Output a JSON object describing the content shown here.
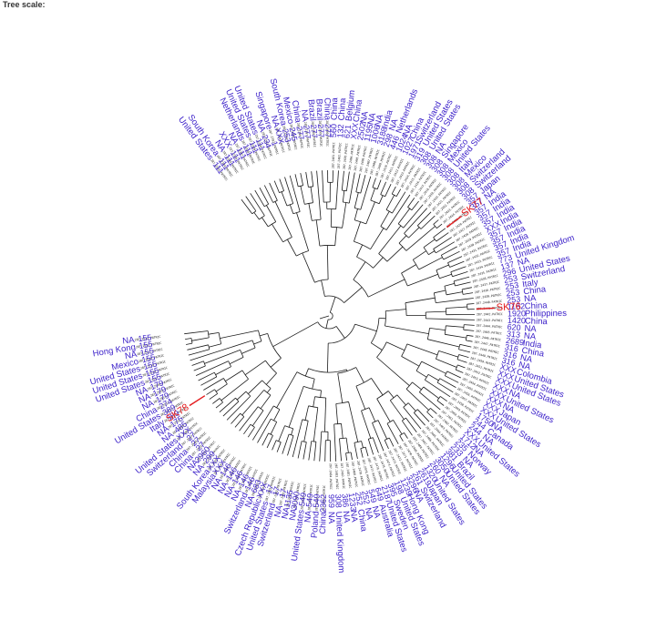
{
  "header": {
    "title": "Tree scale:"
  },
  "colors": {
    "label": "#3a1fc9",
    "branch": "#1a1a1a",
    "highlight": "#e41a1c",
    "id_text": "#111111"
  },
  "tips": [
    {
      "id": "287.2383.PATRIC",
      "st": "111",
      "country": "United States"
    },
    {
      "id": "287.2384.PATRIC",
      "st": "111",
      "country": "South Korea"
    },
    {
      "id": "287.2385.PATRIC",
      "st": "111",
      "country": "NA"
    },
    {
      "id": "287.2386.PATRIC",
      "st": "111",
      "country": "XXX"
    },
    {
      "id": "287.2387.PATRIC",
      "st": "111",
      "country": "NA"
    },
    {
      "id": "287.2388.PATRIC",
      "st": "111",
      "country": "Netherlands"
    },
    {
      "id": "287.2389.PATRIC",
      "st": "111",
      "country": "United States"
    },
    {
      "id": "287.2390.PATRIC",
      "st": "111",
      "country": "United States"
    },
    {
      "id": "287.2391.PATRIC",
      "st": "234",
      "country": "NA"
    },
    {
      "id": "287.2392.PATRIC",
      "st": "1",
      "country": "Singapore"
    },
    {
      "id": "287.2393.PATRIC",
      "st": "XXX",
      "country": "NA"
    },
    {
      "id": "287.2394.PATRIC",
      "st": "253",
      "country": "South Korea"
    },
    {
      "id": "287.2395.PATRIC",
      "st": "245",
      "country": "Mexico"
    },
    {
      "id": "287.2396.PATRIC",
      "st": "277",
      "country": "China"
    },
    {
      "id": "287.2397.PATRIC",
      "st": "277",
      "country": "NA"
    },
    {
      "id": "287.2398.PATRIC",
      "st": "277",
      "country": "Brazil"
    },
    {
      "id": "287.2399.PATRIC",
      "st": "277",
      "country": "Brazil"
    },
    {
      "id": "287.2400.PATRIC",
      "st": "277",
      "country": "China"
    },
    {
      "id": "287.2401.PATRIC",
      "st": "560",
      "country": "China"
    },
    {
      "id": "287.2402.PATRIC",
      "st": "132",
      "country": "China"
    },
    {
      "id": "287.2403.PATRIC",
      "st": "621",
      "country": "Belgium"
    },
    {
      "id": "287.2404.PATRIC",
      "st": "XXX",
      "country": "China"
    },
    {
      "id": "287.2405.PATRIC",
      "st": "2502",
      "country": "NA"
    },
    {
      "id": "287.2406.PATRIC",
      "st": "1195",
      "country": "NA"
    },
    {
      "id": "287.2407.PATRIC",
      "st": "1006",
      "country": "NA"
    },
    {
      "id": "287.2408.PATRIC",
      "st": "3188",
      "country": "India"
    },
    {
      "id": "287.2409.PATRIC",
      "st": "298",
      "country": "NA"
    },
    {
      "id": "287.2410.PATRIC",
      "st": "446",
      "country": "Netherlands"
    },
    {
      "id": "287.2411.PATRIC",
      "st": "1024",
      "country": "NA"
    },
    {
      "id": "287.2412.PATRIC",
      "st": "1027",
      "country": "China"
    },
    {
      "id": "287.2413.PATRIC",
      "st": "1971",
      "country": "Switzerland"
    },
    {
      "id": "287.2414.PATRIC",
      "st": "319",
      "country": "United States"
    },
    {
      "id": "287.2415.PATRIC",
      "st": "308",
      "country": "United States"
    },
    {
      "id": "287.2416.PATRIC",
      "st": "308",
      "country": "NA"
    },
    {
      "id": "287.2417.PATRIC",
      "st": "308",
      "country": "Singapore"
    },
    {
      "id": "287.2418.PATRIC",
      "st": "308",
      "country": "Mexico"
    },
    {
      "id": "287.2419.PATRIC",
      "st": "308",
      "country": "United States"
    },
    {
      "id": "287.2420.PATRIC",
      "st": "308",
      "country": "Italy"
    },
    {
      "id": "287.2421.PATRIC",
      "st": "308",
      "country": "Mexico"
    },
    {
      "id": "287.2422.PATRIC",
      "st": "308",
      "country": "Switzerland"
    },
    {
      "id": "287.2423.PATRIC",
      "st": "308",
      "country": "Switzerland"
    },
    {
      "id": "287.2424.PATRIC",
      "st": "357",
      "country": "Japan"
    },
    {
      "id": "287.2425.PATRIC",
      "st": "357",
      "country": "NA"
    },
    {
      "id": "287.2426.PATRIC",
      "st": "357",
      "country": "India"
    },
    {
      "id": "287.2427.PATRIC",
      "st": "357",
      "country": "India"
    },
    {
      "id": "287.2428.PATRIC",
      "st": "357",
      "country": "India"
    },
    {
      "id": "287.2429.PATRIC",
      "st": "XXX",
      "country": "India"
    },
    {
      "id": "287.2430.PATRIC",
      "st": "357",
      "country": "India"
    },
    {
      "id": "287.2431.PATRIC",
      "st": "357",
      "country": "India"
    },
    {
      "id": "287.2432.PATRIC",
      "st": "357",
      "country": "India"
    },
    {
      "id": "287.2433.PATRIC",
      "st": "357",
      "country": "India"
    },
    {
      "id": "287.2434.PATRIC",
      "st": "773",
      "country": "United Kingdom"
    },
    {
      "id": "287.2435.PATRIC",
      "st": "137",
      "country": "NA"
    },
    {
      "id": "287.2436.PATRIC",
      "st": "296",
      "country": "United States"
    },
    {
      "id": "287.2437.PATRIC",
      "st": "253",
      "country": "Switzerland"
    },
    {
      "id": "287.2438.PATRIC",
      "st": "253",
      "country": "Italy"
    },
    {
      "id": "287.2439.PATRIC",
      "st": "253",
      "country": "China"
    },
    {
      "id": "287.2440.PATRIC",
      "st": "253",
      "country": "NA"
    },
    {
      "id": "287.2441.PATRIC",
      "st": "1182",
      "country": "China"
    },
    {
      "id": "287.2442.PATRIC",
      "st": "1920",
      "country": "Philippines"
    },
    {
      "id": "287.2443.PATRIC",
      "st": "1420",
      "country": "China"
    },
    {
      "id": "287.2444.PATRIC",
      "st": "620",
      "country": "NA"
    },
    {
      "id": "287.2445.PATRIC",
      "st": "313",
      "country": "NA"
    },
    {
      "id": "287.2446.PATRIC",
      "st": "2689",
      "country": "India"
    },
    {
      "id": "287.2447.PATRIC",
      "st": "316",
      "country": "China"
    },
    {
      "id": "287.2448.PATRIC",
      "st": "316",
      "country": "NA"
    },
    {
      "id": "287.2449.PATRIC",
      "st": "316",
      "country": "NA"
    },
    {
      "id": "287.2450.PATRIC",
      "st": "XXX",
      "country": "Colombia"
    },
    {
      "id": "287.2451.PATRIC",
      "st": "XXX",
      "country": "United States"
    },
    {
      "id": "287.2452.PATRIC",
      "st": "XXX",
      "country": "United States"
    },
    {
      "id": "287.2453.PATRIC",
      "st": "XXX",
      "country": "NA"
    },
    {
      "id": "287.2454.PATRIC",
      "st": "XXX",
      "country": "United States"
    },
    {
      "id": "287.2455.PATRIC",
      "st": "XXX",
      "country": "NA"
    },
    {
      "id": "287.2456.PATRIC",
      "st": "XXX",
      "country": "Japan"
    },
    {
      "id": "287.2457.PATRIC",
      "st": "XXX",
      "country": "United States"
    },
    {
      "id": "287.2458.PATRIC",
      "st": "1750",
      "country": "NA"
    },
    {
      "id": "287.2459.PATRIC",
      "st": "244",
      "country": "Canada"
    },
    {
      "id": "287.2460.PATRIC",
      "st": "244",
      "country": "NA"
    },
    {
      "id": "287.2461.PATRIC",
      "st": "XXX",
      "country": "United States"
    },
    {
      "id": "287.2462.PATRIC",
      "st": "1712",
      "country": "NA"
    },
    {
      "id": "287.2463.PATRIC",
      "st": "235",
      "country": "Norway"
    },
    {
      "id": "287.2464.PATRIC",
      "st": "233",
      "country": "NA"
    },
    {
      "id": "287.2465.PATRIC",
      "st": "381",
      "country": "Brazil"
    },
    {
      "id": "287.2466.PATRIC",
      "st": "1296",
      "country": "United States"
    },
    {
      "id": "287.2467.PATRIC",
      "st": "3050",
      "country": "United States"
    },
    {
      "id": "287.2468.PATRIC",
      "st": "260",
      "country": "NA"
    },
    {
      "id": "287.2469.PATRIC",
      "st": "1320",
      "country": "United States"
    },
    {
      "id": "287.2470.PATRIC",
      "st": "2619",
      "country": "Japan"
    },
    {
      "id": "287.2471.PATRIC",
      "st": "261",
      "country": "Switzerland"
    },
    {
      "id": "287.2472.PATRIC",
      "st": "3296",
      "country": "NA"
    },
    {
      "id": "287.2473.PATRIC",
      "st": "1239",
      "country": "Hong Kong"
    },
    {
      "id": "287.2474.PATRIC",
      "st": "198",
      "country": "United States"
    },
    {
      "id": "287.2475.PATRIC",
      "st": "395",
      "country": "Sweden"
    },
    {
      "id": "287.2476.PATRIC",
      "st": "2187",
      "country": "United States"
    },
    {
      "id": "287.2477.PATRIC",
      "st": "649",
      "country": "Australia"
    },
    {
      "id": "287.2478.PATRIC",
      "st": "549",
      "country": "NA"
    },
    {
      "id": "287.2479.PATRIC",
      "st": "252",
      "country": "NA"
    },
    {
      "id": "287.2480.PATRIC",
      "st": "252",
      "country": "China"
    },
    {
      "id": "287.2481.PATRIC",
      "st": "1233",
      "country": "NA"
    },
    {
      "id": "287.2482.PATRIC",
      "st": "386",
      "country": "NA"
    },
    {
      "id": "287.2483.PATRIC",
      "st": "308",
      "country": "United Kingdom"
    },
    {
      "id": "287.2484.PATRIC",
      "st": "959",
      "country": "NA"
    },
    {
      "id": "287.2485.PATRIC",
      "st": "2362",
      "country": "China"
    },
    {
      "id": "287.2486.PATRIC",
      "st": "549",
      "country": "Poland"
    },
    {
      "id": "287.2487.PATRIC",
      "st": "549",
      "country": "NA"
    },
    {
      "id": "287.2488.PATRIC",
      "st": "549",
      "country": "United States"
    },
    {
      "id": "287.2489.PATRIC",
      "st": "3090",
      "country": "NA"
    },
    {
      "id": "287.2490.PATRIC",
      "st": "1135",
      "country": "NA"
    },
    {
      "id": "287.2491.PATRIC",
      "st": "17",
      "country": "NA"
    },
    {
      "id": "287.2492.PATRIC",
      "st": "17",
      "country": "Switzerland"
    },
    {
      "id": "287.2493.PATRIC",
      "st": "17",
      "country": "United States"
    },
    {
      "id": "287.2494.PATRIC",
      "st": "XXX",
      "country": "Czech Republic"
    },
    {
      "id": "287.2495.PATRIC",
      "st": "683",
      "country": "NA"
    },
    {
      "id": "287.2496.PATRIC",
      "st": "146",
      "country": "Switzerland"
    },
    {
      "id": "287.2497.PATRIC",
      "st": "146",
      "country": "NA"
    },
    {
      "id": "287.2498.PATRIC",
      "st": "146",
      "country": "NA"
    },
    {
      "id": "287.2499.PATRIC",
      "st": "146",
      "country": "NA"
    },
    {
      "id": "287.2500.PATRIC",
      "st": "146",
      "country": "NA"
    },
    {
      "id": "287.2501.PATRIC",
      "st": "XXX",
      "country": "Malaysia"
    },
    {
      "id": "287.2502.PATRIC",
      "st": "XXX",
      "country": "South Korea"
    },
    {
      "id": "287.2503.PATRIC",
      "st": "299",
      "country": "NA"
    },
    {
      "id": "287.2504.PATRIC",
      "st": "2960",
      "country": "NA"
    },
    {
      "id": "287.2505.PATRIC",
      "st": "27",
      "country": "China"
    },
    {
      "id": "287.2506.PATRIC",
      "st": "27",
      "country": "China"
    },
    {
      "id": "287.2507.PATRIC",
      "st": "27",
      "country": "Switzerland"
    },
    {
      "id": "287.2508.PATRIC",
      "st": "XXX",
      "country": "United States"
    },
    {
      "id": "287.2509.PATRIC",
      "st": "485",
      "country": "NA"
    },
    {
      "id": "287.2510.PATRIC",
      "st": "175",
      "country": "NA"
    },
    {
      "id": "287.2511.PATRIC",
      "st": "389",
      "country": "Italy"
    },
    {
      "id": "287.2512.PATRIC",
      "st": "389",
      "country": "United States"
    },
    {
      "id": "287.2513.PATRIC",
      "st": "274",
      "country": "China"
    },
    {
      "id": "287.2514.PATRIC",
      "st": "179",
      "country": "NA"
    },
    {
      "id": "287.2515.PATRIC",
      "st": "179",
      "country": "NA"
    },
    {
      "id": "287.2516.PATRIC",
      "st": "179",
      "country": "NA"
    },
    {
      "id": "287.2517.PATRIC",
      "st": "155",
      "country": "United States"
    },
    {
      "id": "287.2518.PATRIC",
      "st": "155",
      "country": "United States"
    },
    {
      "id": "287.2519.PATRIC",
      "st": "155",
      "country": "United States"
    },
    {
      "id": "287.2520.PATRIC",
      "st": "155",
      "country": "Mexico"
    },
    {
      "id": "287.2521.PATRIC",
      "st": "155",
      "country": "NA"
    },
    {
      "id": "287.2522.PATRIC",
      "st": "155",
      "country": "Hong Kong"
    },
    {
      "id": "287.2523.PATRIC",
      "st": "155",
      "country": "NA"
    }
  ],
  "highlights": [
    {
      "label": "SK77",
      "tip": 42
    },
    {
      "label": "SK76",
      "tip": 58
    },
    {
      "label": "SK78",
      "tip": 128
    }
  ]
}
